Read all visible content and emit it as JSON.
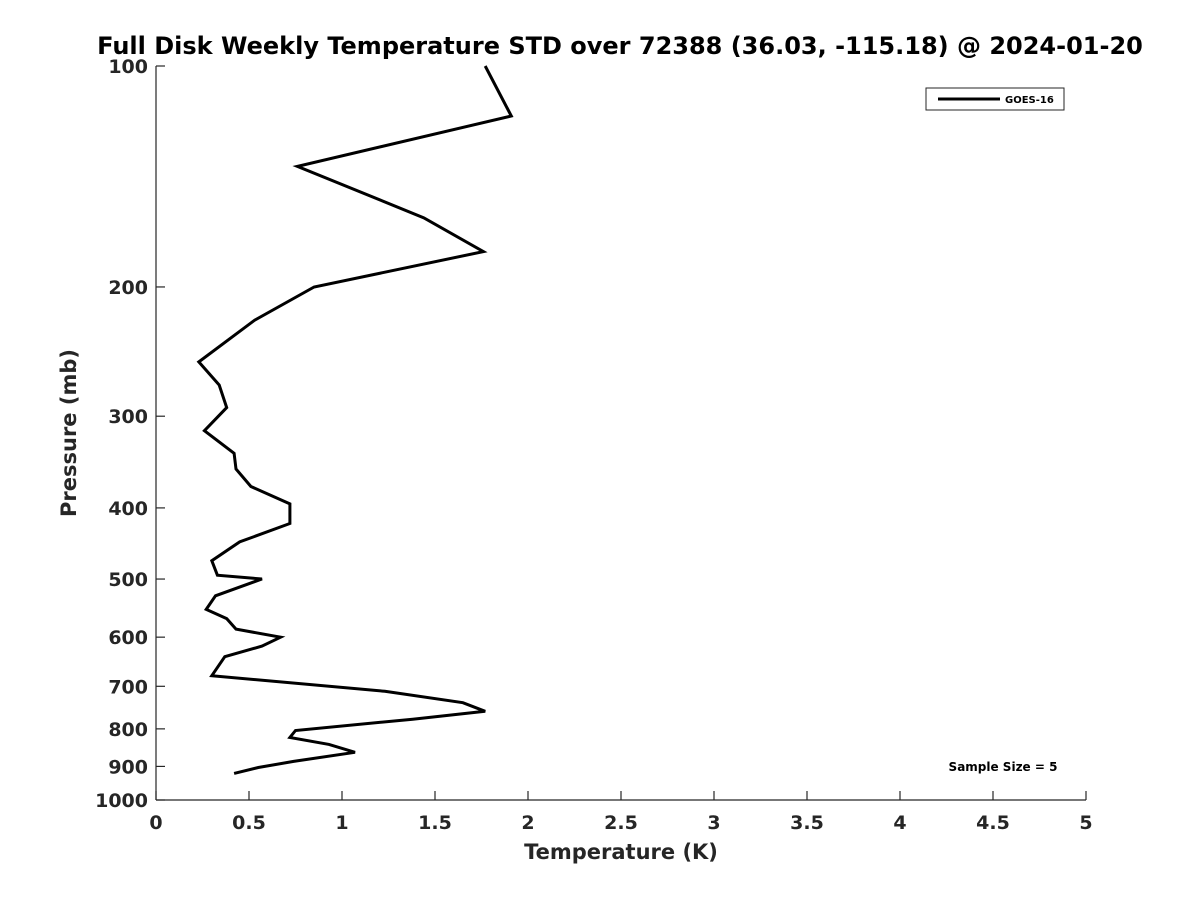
{
  "chart_data": {
    "type": "line",
    "title": "Full Disk Weekly Temperature STD over 72388 (36.03, -115.18) @ 2024-01-20",
    "xlabel": "Temperature (K)",
    "ylabel": "Pressure (mb)",
    "xlim": [
      0,
      5
    ],
    "ylim": [
      100,
      1000
    ],
    "y_scale": "log",
    "y_reversed": true,
    "grid": false,
    "legend_position": "top-right",
    "x_ticks": [
      "0",
      "0.5",
      "1",
      "1.5",
      "2",
      "2.5",
      "3",
      "3.5",
      "4",
      "4.5",
      "5"
    ],
    "x_tick_values": [
      0,
      0.5,
      1,
      1.5,
      2,
      2.5,
      3,
      3.5,
      4,
      4.5,
      5
    ],
    "y_ticks": [
      "100",
      "200",
      "300",
      "400",
      "500",
      "600",
      "700",
      "800",
      "900",
      "1000"
    ],
    "y_tick_values": [
      100,
      200,
      300,
      400,
      500,
      600,
      700,
      800,
      900,
      1000
    ],
    "series": [
      {
        "name": "GOES-16",
        "color": "#000000",
        "points": [
          {
            "x": 1.77,
            "y": 100
          },
          {
            "x": 1.91,
            "y": 117
          },
          {
            "x": 0.76,
            "y": 137
          },
          {
            "x": 1.44,
            "y": 161
          },
          {
            "x": 1.76,
            "y": 179
          },
          {
            "x": 0.85,
            "y": 200
          },
          {
            "x": 0.53,
            "y": 222
          },
          {
            "x": 0.23,
            "y": 253
          },
          {
            "x": 0.34,
            "y": 272
          },
          {
            "x": 0.38,
            "y": 292
          },
          {
            "x": 0.26,
            "y": 314
          },
          {
            "x": 0.42,
            "y": 337
          },
          {
            "x": 0.43,
            "y": 354
          },
          {
            "x": 0.51,
            "y": 374
          },
          {
            "x": 0.72,
            "y": 395
          },
          {
            "x": 0.72,
            "y": 420
          },
          {
            "x": 0.45,
            "y": 445
          },
          {
            "x": 0.3,
            "y": 472
          },
          {
            "x": 0.33,
            "y": 494
          },
          {
            "x": 0.57,
            "y": 500
          },
          {
            "x": 0.32,
            "y": 527
          },
          {
            "x": 0.27,
            "y": 550
          },
          {
            "x": 0.38,
            "y": 566
          },
          {
            "x": 0.43,
            "y": 585
          },
          {
            "x": 0.67,
            "y": 600
          },
          {
            "x": 0.57,
            "y": 617
          },
          {
            "x": 0.37,
            "y": 638
          },
          {
            "x": 0.3,
            "y": 677
          },
          {
            "x": 1.23,
            "y": 711
          },
          {
            "x": 1.65,
            "y": 737
          },
          {
            "x": 1.77,
            "y": 757
          },
          {
            "x": 1.38,
            "y": 776
          },
          {
            "x": 0.75,
            "y": 804
          },
          {
            "x": 0.72,
            "y": 822
          },
          {
            "x": 0.93,
            "y": 840
          },
          {
            "x": 1.07,
            "y": 861
          },
          {
            "x": 0.74,
            "y": 886
          },
          {
            "x": 0.55,
            "y": 903
          },
          {
            "x": 0.42,
            "y": 920
          }
        ]
      }
    ],
    "annotation": "Sample Size = 5"
  }
}
